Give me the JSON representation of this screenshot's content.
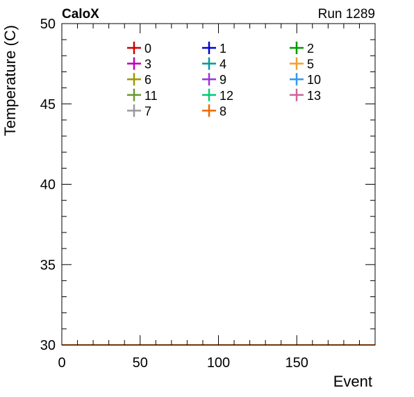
{
  "header": {
    "experiment": "CaloX",
    "run": "Run 1289"
  },
  "chart_data": {
    "type": "line",
    "xlabel": "Event",
    "ylabel": "Temperature (C)",
    "xlim": [
      0,
      199
    ],
    "ylim": [
      30,
      50
    ],
    "x_ticks": [
      0,
      50,
      100,
      150
    ],
    "y_ticks": [
      30,
      35,
      40,
      45,
      50
    ],
    "grid": false,
    "legend_placement": "top-center",
    "series": [
      {
        "name": "0",
        "color": "#cc0000",
        "values_constant": 30
      },
      {
        "name": "1",
        "color": "#0000cc",
        "values_constant": 30
      },
      {
        "name": "2",
        "color": "#009900",
        "values_constant": 30
      },
      {
        "name": "3",
        "color": "#bb00bb",
        "values_constant": 30
      },
      {
        "name": "4",
        "color": "#009999",
        "values_constant": 30
      },
      {
        "name": "5",
        "color": "#f0a030",
        "values_constant": 30
      },
      {
        "name": "6",
        "color": "#999900",
        "values_constant": 30
      },
      {
        "name": "9",
        "color": "#9933dd",
        "values_constant": 30
      },
      {
        "name": "10",
        "color": "#3399ee",
        "values_constant": 30
      },
      {
        "name": "11",
        "color": "#669933",
        "values_constant": 30
      },
      {
        "name": "12",
        "color": "#00cc77",
        "values_constant": 30
      },
      {
        "name": "13",
        "color": "#cc6699",
        "values_constant": 30
      },
      {
        "name": "7",
        "color": "#999999",
        "values_constant": 30
      },
      {
        "name": "8",
        "color": "#ee6600",
        "values_constant": 30
      }
    ]
  }
}
